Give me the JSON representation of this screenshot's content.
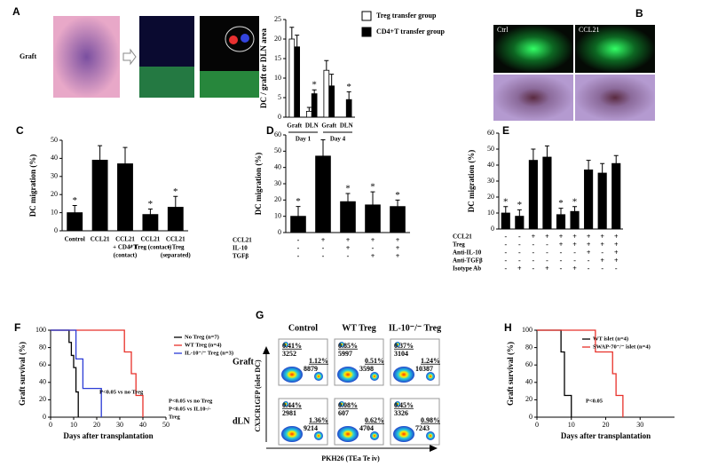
{
  "figure": {
    "panel_labels": [
      "A",
      "B",
      "C",
      "D",
      "E",
      "F",
      "G",
      "H"
    ],
    "a_image_label": "Graft",
    "b_image_labels": [
      "Ctrl",
      "CCL21"
    ],
    "g": {
      "columns": [
        "Control",
        "WT Treg",
        "IL-10⁻/⁻ Treg"
      ],
      "rows": [
        "Graft",
        "dLN"
      ],
      "y_label": "CX3CR1GFP (islet DC)",
      "x_label": "PKH26 (TEa Te iv)",
      "cells": [
        [
          {
            "tl_pct": "0.41%",
            "tl_count": 3252,
            "br_pct": "1.12%",
            "br_count": 8879
          },
          {
            "tl_pct": "0.85%",
            "tl_count": 5997,
            "br_pct": "0.51%",
            "br_count": 3598
          },
          {
            "tl_pct": "0.37%",
            "tl_count": 3104,
            "br_pct": "1.24%",
            "br_count": 10387
          }
        ],
        [
          {
            "tl_pct": "0.44%",
            "tl_count": 2981,
            "br_pct": "1.36%",
            "br_count": 9214
          },
          {
            "tl_pct": "0.08%",
            "tl_count": 607,
            "br_pct": "0.62%",
            "br_count": 4704
          },
          {
            "tl_pct": "0.45%",
            "tl_count": 3326,
            "br_pct": "0.98%",
            "br_count": 7243
          }
        ]
      ]
    }
  },
  "chart_data": [
    {
      "type": "bar",
      "y_label": "DC / graft or DLN area",
      "categories": [
        "Graft",
        "DLN",
        "Graft",
        "DLN"
      ],
      "group_labels": [
        "Day 1",
        "Day 4"
      ],
      "series": [
        {
          "name": "Treg transfer group",
          "color": "#ffffff",
          "values": [
            20,
            1.5,
            12,
            0
          ],
          "errors": [
            3,
            1,
            2.5,
            0
          ],
          "marks": [
            null,
            null,
            null,
            null
          ]
        },
        {
          "name": "CD4+T transfer group",
          "color": "#000000",
          "values": [
            18,
            6,
            8,
            4.5
          ],
          "errors": [
            3,
            1,
            3,
            2
          ],
          "marks": [
            null,
            "*",
            null,
            "*"
          ]
        }
      ],
      "ylim": [
        0,
        25
      ],
      "yticks": [
        0,
        5,
        10,
        15,
        20,
        25
      ]
    },
    {
      "type": "bar",
      "y_label": "DC migration (%)",
      "categories": [
        [
          "Control"
        ],
        [
          "CCL21"
        ],
        [
          "CCL21",
          "+ CD4⁺T",
          "(contact)"
        ],
        [
          "CCL21",
          "+ Treg (contact)"
        ],
        [
          "CCL21",
          "+ Treg",
          "(separated)"
        ]
      ],
      "values": [
        10,
        39,
        37,
        9,
        13
      ],
      "errors": [
        4,
        8,
        9,
        3,
        6
      ],
      "marks": [
        "*",
        null,
        null,
        "*",
        "*"
      ],
      "color": "#000000",
      "ylim": [
        0,
        50
      ],
      "yticks": [
        0,
        10,
        20,
        30,
        40,
        50
      ]
    },
    {
      "type": "bar",
      "y_label": "DC migration (%)",
      "categories": [
        null,
        null,
        null,
        null,
        null
      ],
      "conditions": [
        {
          "name": "CCL21",
          "signs": [
            "-",
            "+",
            "+",
            "+",
            "+"
          ]
        },
        {
          "name": "IL-10",
          "signs": [
            "-",
            "-",
            "+",
            "-",
            "+"
          ]
        },
        {
          "name": "TGFβ",
          "signs": [
            "-",
            "-",
            "-",
            "+",
            "+"
          ]
        }
      ],
      "values": [
        10,
        47,
        19,
        17,
        16
      ],
      "errors": [
        6,
        10,
        5,
        8,
        4
      ],
      "marks": [
        "*",
        null,
        "*",
        "*",
        "*"
      ],
      "color": "#000000",
      "ylim": [
        0,
        60
      ],
      "yticks": [
        0,
        10,
        20,
        30,
        40,
        50,
        60
      ]
    },
    {
      "type": "bar",
      "y_label": "DC migration (%)",
      "categories": [
        null,
        null,
        null,
        null,
        null,
        null,
        null,
        null,
        null
      ],
      "conditions": [
        {
          "name": "CCL21",
          "signs": [
            "-",
            "-",
            "+",
            "+",
            "+",
            "+",
            "+",
            "+",
            "+"
          ]
        },
        {
          "name": "Treg",
          "signs": [
            "-",
            "-",
            "-",
            "-",
            "+",
            "+",
            "+",
            "+",
            "+"
          ]
        },
        {
          "name": "Anti-IL-10",
          "signs": [
            "-",
            "-",
            "-",
            "-",
            "-",
            "-",
            "+",
            "-",
            "+"
          ]
        },
        {
          "name": "Anti-TGFβ",
          "signs": [
            "-",
            "-",
            "-",
            "-",
            "-",
            "-",
            "-",
            "+",
            "+"
          ]
        },
        {
          "name": "Isotype Ab",
          "signs": [
            "-",
            "+",
            "-",
            "+",
            "-",
            "+",
            "-",
            "-",
            "-"
          ]
        }
      ],
      "values": [
        10,
        8,
        43,
        45,
        9,
        11,
        37,
        35,
        41
      ],
      "errors": [
        4,
        4,
        7,
        7,
        4,
        3,
        6,
        6,
        5
      ],
      "marks": [
        "*",
        "*",
        null,
        null,
        "*",
        "*",
        null,
        null,
        null
      ],
      "color": "#000000",
      "ylim": [
        0,
        60
      ],
      "yticks": [
        0,
        10,
        20,
        30,
        40,
        50,
        60
      ]
    },
    {
      "type": "step",
      "x_label": "Days after transplantation",
      "y_label": "Graft survival (%)",
      "series": [
        {
          "name": "No Treg (n=7)",
          "color": "#000000",
          "x": [
            0,
            8,
            9,
            10,
            11,
            12
          ],
          "values": [
            100,
            86,
            71,
            57,
            29,
            0
          ]
        },
        {
          "name": "WT Treg (n=4)",
          "color": "#e8312a",
          "x": [
            0,
            32,
            35,
            37,
            40
          ],
          "values": [
            100,
            75,
            50,
            25,
            0
          ]
        },
        {
          "name": "IL-10⁻/⁻ Treg (n=3)",
          "color": "#2b3bd6",
          "x": [
            0,
            11,
            14,
            22
          ],
          "values": [
            100,
            67,
            33,
            0
          ]
        }
      ],
      "annotations": [
        "P<0.05 vs no Treg",
        "P<0.05 vs no Treg",
        "P<0.05 vs IL10-/-",
        "Treg"
      ],
      "xlim": [
        0,
        50
      ],
      "xticks": [
        0,
        10,
        20,
        30,
        40,
        50
      ],
      "ylim": [
        0,
        100
      ],
      "yticks": [
        0,
        20,
        40,
        60,
        80,
        100
      ]
    },
    {
      "type": "step",
      "x_label": "Days after transplantation",
      "y_label": "Graft survival (%)",
      "series": [
        {
          "name": "WT islet (n=4)",
          "color": "#000000",
          "x": [
            0,
            7,
            8,
            10
          ],
          "values": [
            100,
            75,
            25,
            0
          ]
        },
        {
          "name": "SWAP-70⁻/⁻ islet (n=4)",
          "color": "#e8312a",
          "x": [
            0,
            17,
            22,
            23,
            25
          ],
          "values": [
            100,
            75,
            50,
            25,
            0
          ]
        }
      ],
      "annotations": [
        "P<0.05"
      ],
      "xlim": [
        0,
        40
      ],
      "xticks": [
        0,
        10,
        20,
        30
      ],
      "ylim": [
        0,
        100
      ],
      "yticks": [
        0,
        20,
        40,
        60,
        80,
        100
      ]
    }
  ]
}
